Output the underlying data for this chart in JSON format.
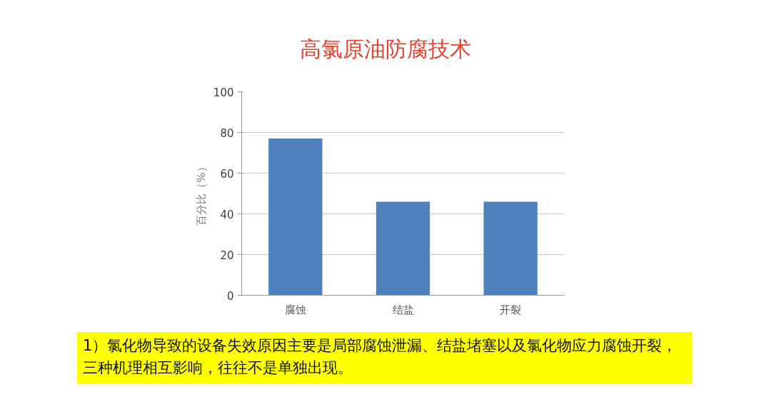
{
  "chart_data": {
    "type": "bar",
    "title": "高氯原油防腐技术",
    "categories": [
      "腐蚀",
      "结盐",
      "开裂"
    ],
    "values": [
      77,
      46,
      46
    ],
    "color": "#4f81bd",
    "ylabel": "百分比（%）",
    "ylim": [
      0,
      100
    ],
    "yticks": [
      0,
      20,
      40,
      60,
      80,
      100
    ],
    "grid": "y",
    "annotations": [
      "1）氯化物导致的设备失效原因主要是局部腐蚀泄漏、结盐堵塞以及氯化物应力腐蚀开裂，三种机理相互影响，往往不是单独出现。"
    ]
  }
}
